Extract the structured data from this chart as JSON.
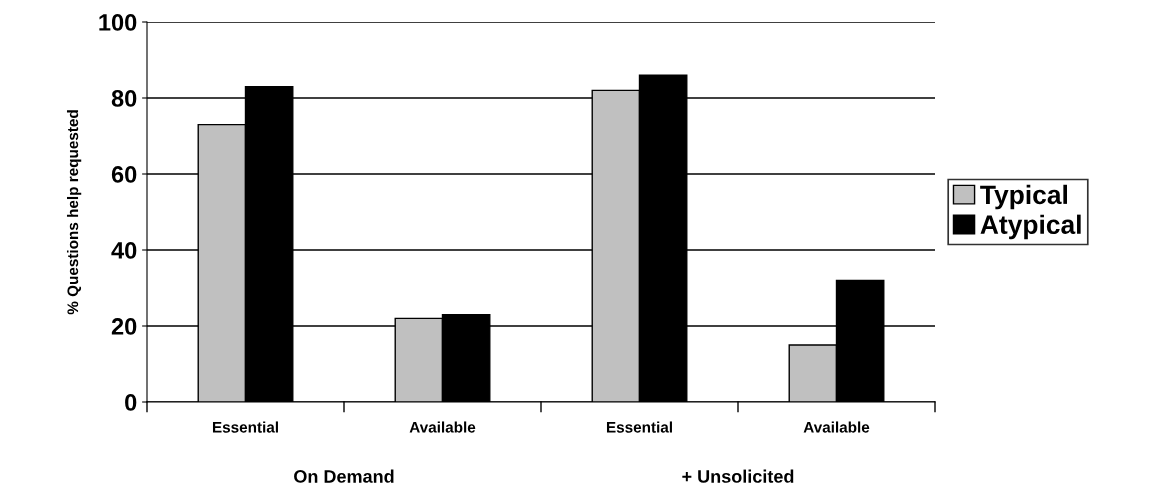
{
  "chart_data": {
    "type": "bar",
    "ylabel": "% Questions help requested",
    "categories": [
      "Essential",
      "Available",
      "Essential",
      "Available"
    ],
    "series": [
      {
        "name": "Typical",
        "color": "#c0c0c0",
        "values": [
          73,
          22,
          82,
          15
        ]
      },
      {
        "name": "Atypical",
        "color": "#000000",
        "values": [
          83,
          23,
          86,
          32
        ]
      }
    ],
    "ylim": [
      0,
      100
    ],
    "yticks": [
      0,
      20,
      40,
      60,
      80,
      100
    ],
    "grid": "y",
    "legend": "right",
    "annotations": [
      "On Demand",
      "+ Unsolicited"
    ]
  }
}
